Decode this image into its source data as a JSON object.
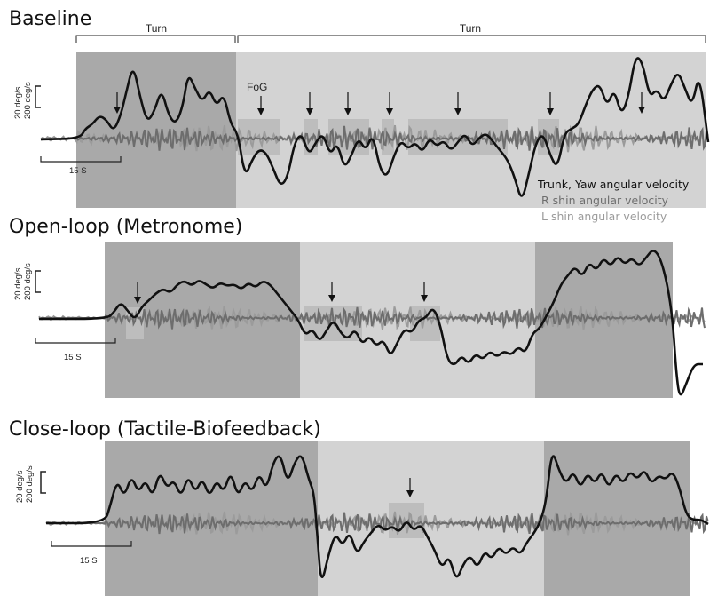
{
  "chart_data": [
    {
      "type": "line",
      "title": "Baseline",
      "turn_labels": [
        "Turn",
        "Turn"
      ],
      "fog_label": "FoG",
      "scale_bar": {
        "y_labels": [
          "20 deg/s",
          "200 deg/s"
        ],
        "x_label": "15 S"
      },
      "legend": [
        "Trunk, Yaw angular velocity",
        "R shin angular velocity",
        "L shin angular velocity"
      ],
      "series": [
        {
          "name": "Trunk, Yaw angular velocity",
          "color": "#111111"
        },
        {
          "name": "R shin angular velocity",
          "color": "#6d6d6d"
        },
        {
          "name": "L shin angular velocity",
          "color": "#9b9b9b"
        }
      ],
      "fog_arrow_count": 9
    },
    {
      "type": "line",
      "title": "Open-loop (Metronome)",
      "scale_bar": {
        "y_labels": [
          "20 deg/s",
          "200 deg/s"
        ],
        "x_label": "15 S"
      },
      "fog_arrow_count": 3
    },
    {
      "type": "line",
      "title": "Close-loop (Tactile-Biofeedback)",
      "scale_bar": {
        "y_labels": [
          "20 deg/s",
          "200 deg/s"
        ],
        "x_label": "15 S"
      },
      "fog_arrow_count": 1
    }
  ],
  "colors": {
    "turn_shade": "#a9a9a9",
    "straight_shade": "#d3d3d3",
    "fog_highlight": "#bdbdbd",
    "trunk": "#111111",
    "r_shin": "#6d6d6d",
    "l_shin": "#9b9b9b"
  }
}
